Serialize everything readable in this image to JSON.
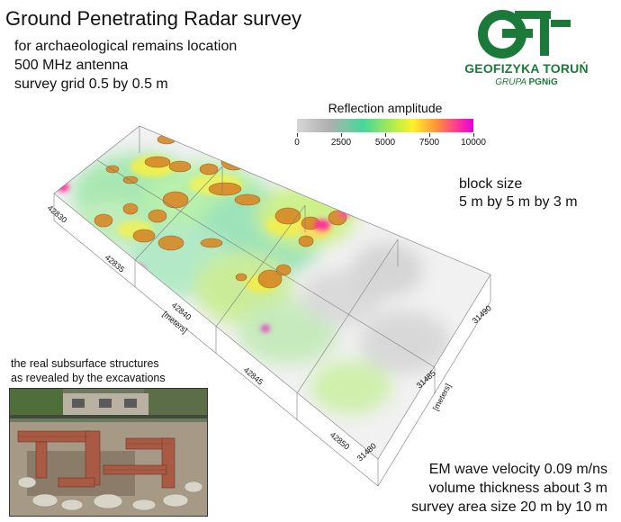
{
  "header": {
    "title": "Ground Penetrating Radar survey",
    "lines": [
      "for archaeological remains location",
      "500 MHz antenna",
      "survey grid 0.5 by 0.5 m"
    ]
  },
  "logo": {
    "letters": "Gt",
    "name": "GEOFIZYKA TORUŃ",
    "group_prefix": "GRUPA",
    "group_brand": "PGNiG",
    "color": "#1b7a3a"
  },
  "colorbar": {
    "title": "Reflection amplitude",
    "ticks": [
      "0",
      "2500",
      "5000",
      "7500",
      "10000"
    ],
    "range": [
      0,
      10000
    ]
  },
  "block": {
    "label": "block size",
    "value": "5 m by 5 m by 3 m"
  },
  "axes": {
    "x_ticks": [
      "42830",
      "42835",
      "42840",
      "42845",
      "42850"
    ],
    "x_unit": "[meters]",
    "y_ticks": [
      "31480",
      "31485",
      "31490"
    ],
    "y_unit": "[meters]"
  },
  "photo": {
    "caption_lines": [
      "the real subsurface structures",
      "as revealed by the excavations"
    ]
  },
  "footer": {
    "lines": [
      "EM wave velocity 0.09 m/ns",
      "volume thickness about 3 m",
      "survey area size 20 m by 10 m"
    ]
  },
  "colors": {
    "gray_low": "#c8c8c8",
    "green_mid": "#46d89a",
    "yellow": "#fff12a",
    "orange": "#e08a18",
    "magenta": "#e000e0"
  }
}
